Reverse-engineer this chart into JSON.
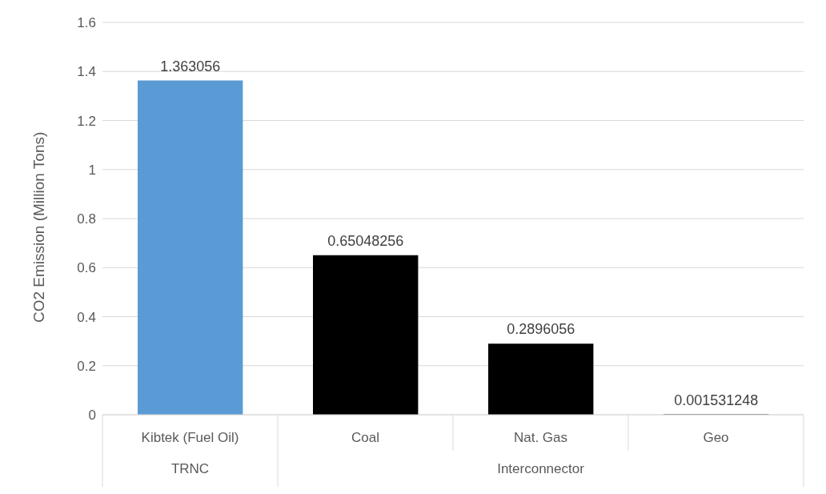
{
  "chart_data": {
    "type": "bar",
    "ylabel": "CO2 Emission (Million Tons)",
    "categories": [
      "Kibtek (Fuel Oil)",
      "Coal",
      "Nat. Gas",
      "Geo"
    ],
    "values": [
      1.363056,
      0.65048256,
      0.2896056,
      0.001531248
    ],
    "colors": [
      "#5b9bd5",
      "#000000",
      "#000000",
      "#000000"
    ],
    "ylim": [
      0,
      1.6
    ],
    "yticks": [
      0,
      0.2,
      0.4,
      0.6,
      0.8,
      1,
      1.2,
      1.4,
      1.6
    ],
    "grid": "y",
    "data_labels": true,
    "annotations": [
      "TRNC",
      "Interconnector"
    ]
  }
}
